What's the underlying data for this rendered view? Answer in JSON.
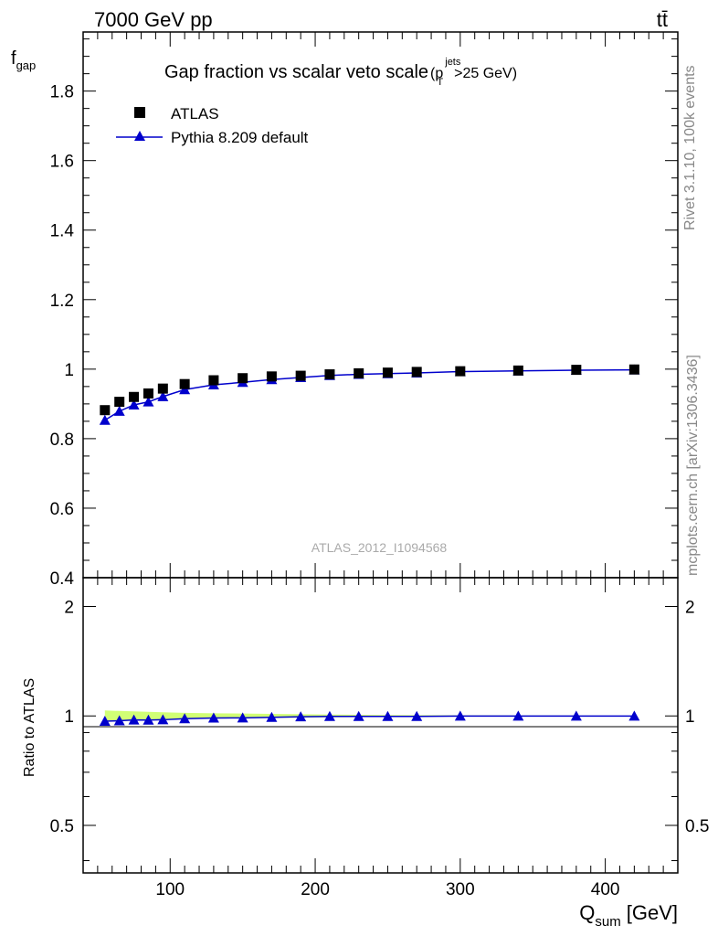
{
  "header": {
    "left": "7000 GeV pp",
    "right": "tt̄"
  },
  "side_labels": {
    "rivet": "Rivet 3.1.10,  100k events",
    "mcplots": "mcplots.cern.ch [arXiv:1306.3436]"
  },
  "analysis_id": "ATLAS_2012_I1094568",
  "chart_data": [
    {
      "type": "scatter",
      "title": "Gap fraction vs scalar veto scale",
      "title_cut_sup": "jets",
      "title_cut_sub": "T",
      "title_cut_tail": ">25 GeV)",
      "title_cut_base": "(p",
      "ylabel": "f",
      "ylabel_sub": "gap",
      "xlim": [
        40,
        450
      ],
      "ylim": [
        0.4,
        1.97
      ],
      "yticks": [
        "0.4",
        "0.6",
        "0.8",
        "1",
        "1.2",
        "1.4",
        "1.6",
        "1.8"
      ],
      "legend_position": "top-left",
      "x": [
        55,
        65,
        75,
        85,
        95,
        110,
        130,
        150,
        170,
        190,
        210,
        230,
        250,
        270,
        300,
        340,
        380,
        420
      ],
      "series": [
        {
          "name": "ATLAS",
          "marker": "square",
          "color": "#000000",
          "values": [
            0.882,
            0.906,
            0.92,
            0.93,
            0.944,
            0.957,
            0.968,
            0.974,
            0.979,
            0.981,
            0.985,
            0.988,
            0.99,
            0.992,
            0.994,
            0.996,
            0.998,
            0.999
          ]
        },
        {
          "name": "Pythia 8.209 default",
          "marker": "triangle",
          "color": "#0000cc",
          "values": [
            0.853,
            0.879,
            0.897,
            0.906,
            0.921,
            0.941,
            0.955,
            0.962,
            0.97,
            0.976,
            0.982,
            0.985,
            0.987,
            0.989,
            0.993,
            0.995,
            0.997,
            0.998
          ]
        }
      ]
    },
    {
      "type": "line",
      "ylabel": "Ratio to ATLAS",
      "xlabel": "Q",
      "xlabel_sub": "sum",
      "xlabel_unit": "[GeV]",
      "xlim": [
        40,
        450
      ],
      "ylim": [
        0.37,
        2.4
      ],
      "log_y": true,
      "yticks": [
        "0.5",
        "1",
        "2"
      ],
      "xticks": [
        "100",
        "200",
        "300",
        "400"
      ],
      "band_color": "#ccff66",
      "x": [
        55,
        65,
        75,
        85,
        95,
        110,
        130,
        150,
        170,
        190,
        210,
        230,
        250,
        270,
        300,
        340,
        380,
        420
      ],
      "band": {
        "low": [
          0.965,
          0.968,
          0.971,
          0.974,
          0.977,
          0.98,
          0.983,
          0.985,
          0.987,
          0.989,
          0.991,
          0.993,
          0.994,
          0.995,
          0.996,
          0.997,
          0.998,
          0.999
        ],
        "high": [
          1.035,
          1.032,
          1.029,
          1.026,
          1.023,
          1.02,
          1.017,
          1.015,
          1.013,
          1.011,
          1.009,
          1.007,
          1.006,
          1.005,
          1.004,
          1.003,
          1.002,
          1.001
        ]
      },
      "series": [
        {
          "name": "Pythia 8.209 default",
          "color": "#0000cc",
          "values": [
            0.967,
            0.97,
            0.975,
            0.974,
            0.976,
            0.983,
            0.987,
            0.988,
            0.991,
            0.995,
            0.997,
            0.997,
            0.997,
            0.997,
            0.999,
            0.999,
            0.999,
            0.999
          ]
        }
      ]
    }
  ]
}
